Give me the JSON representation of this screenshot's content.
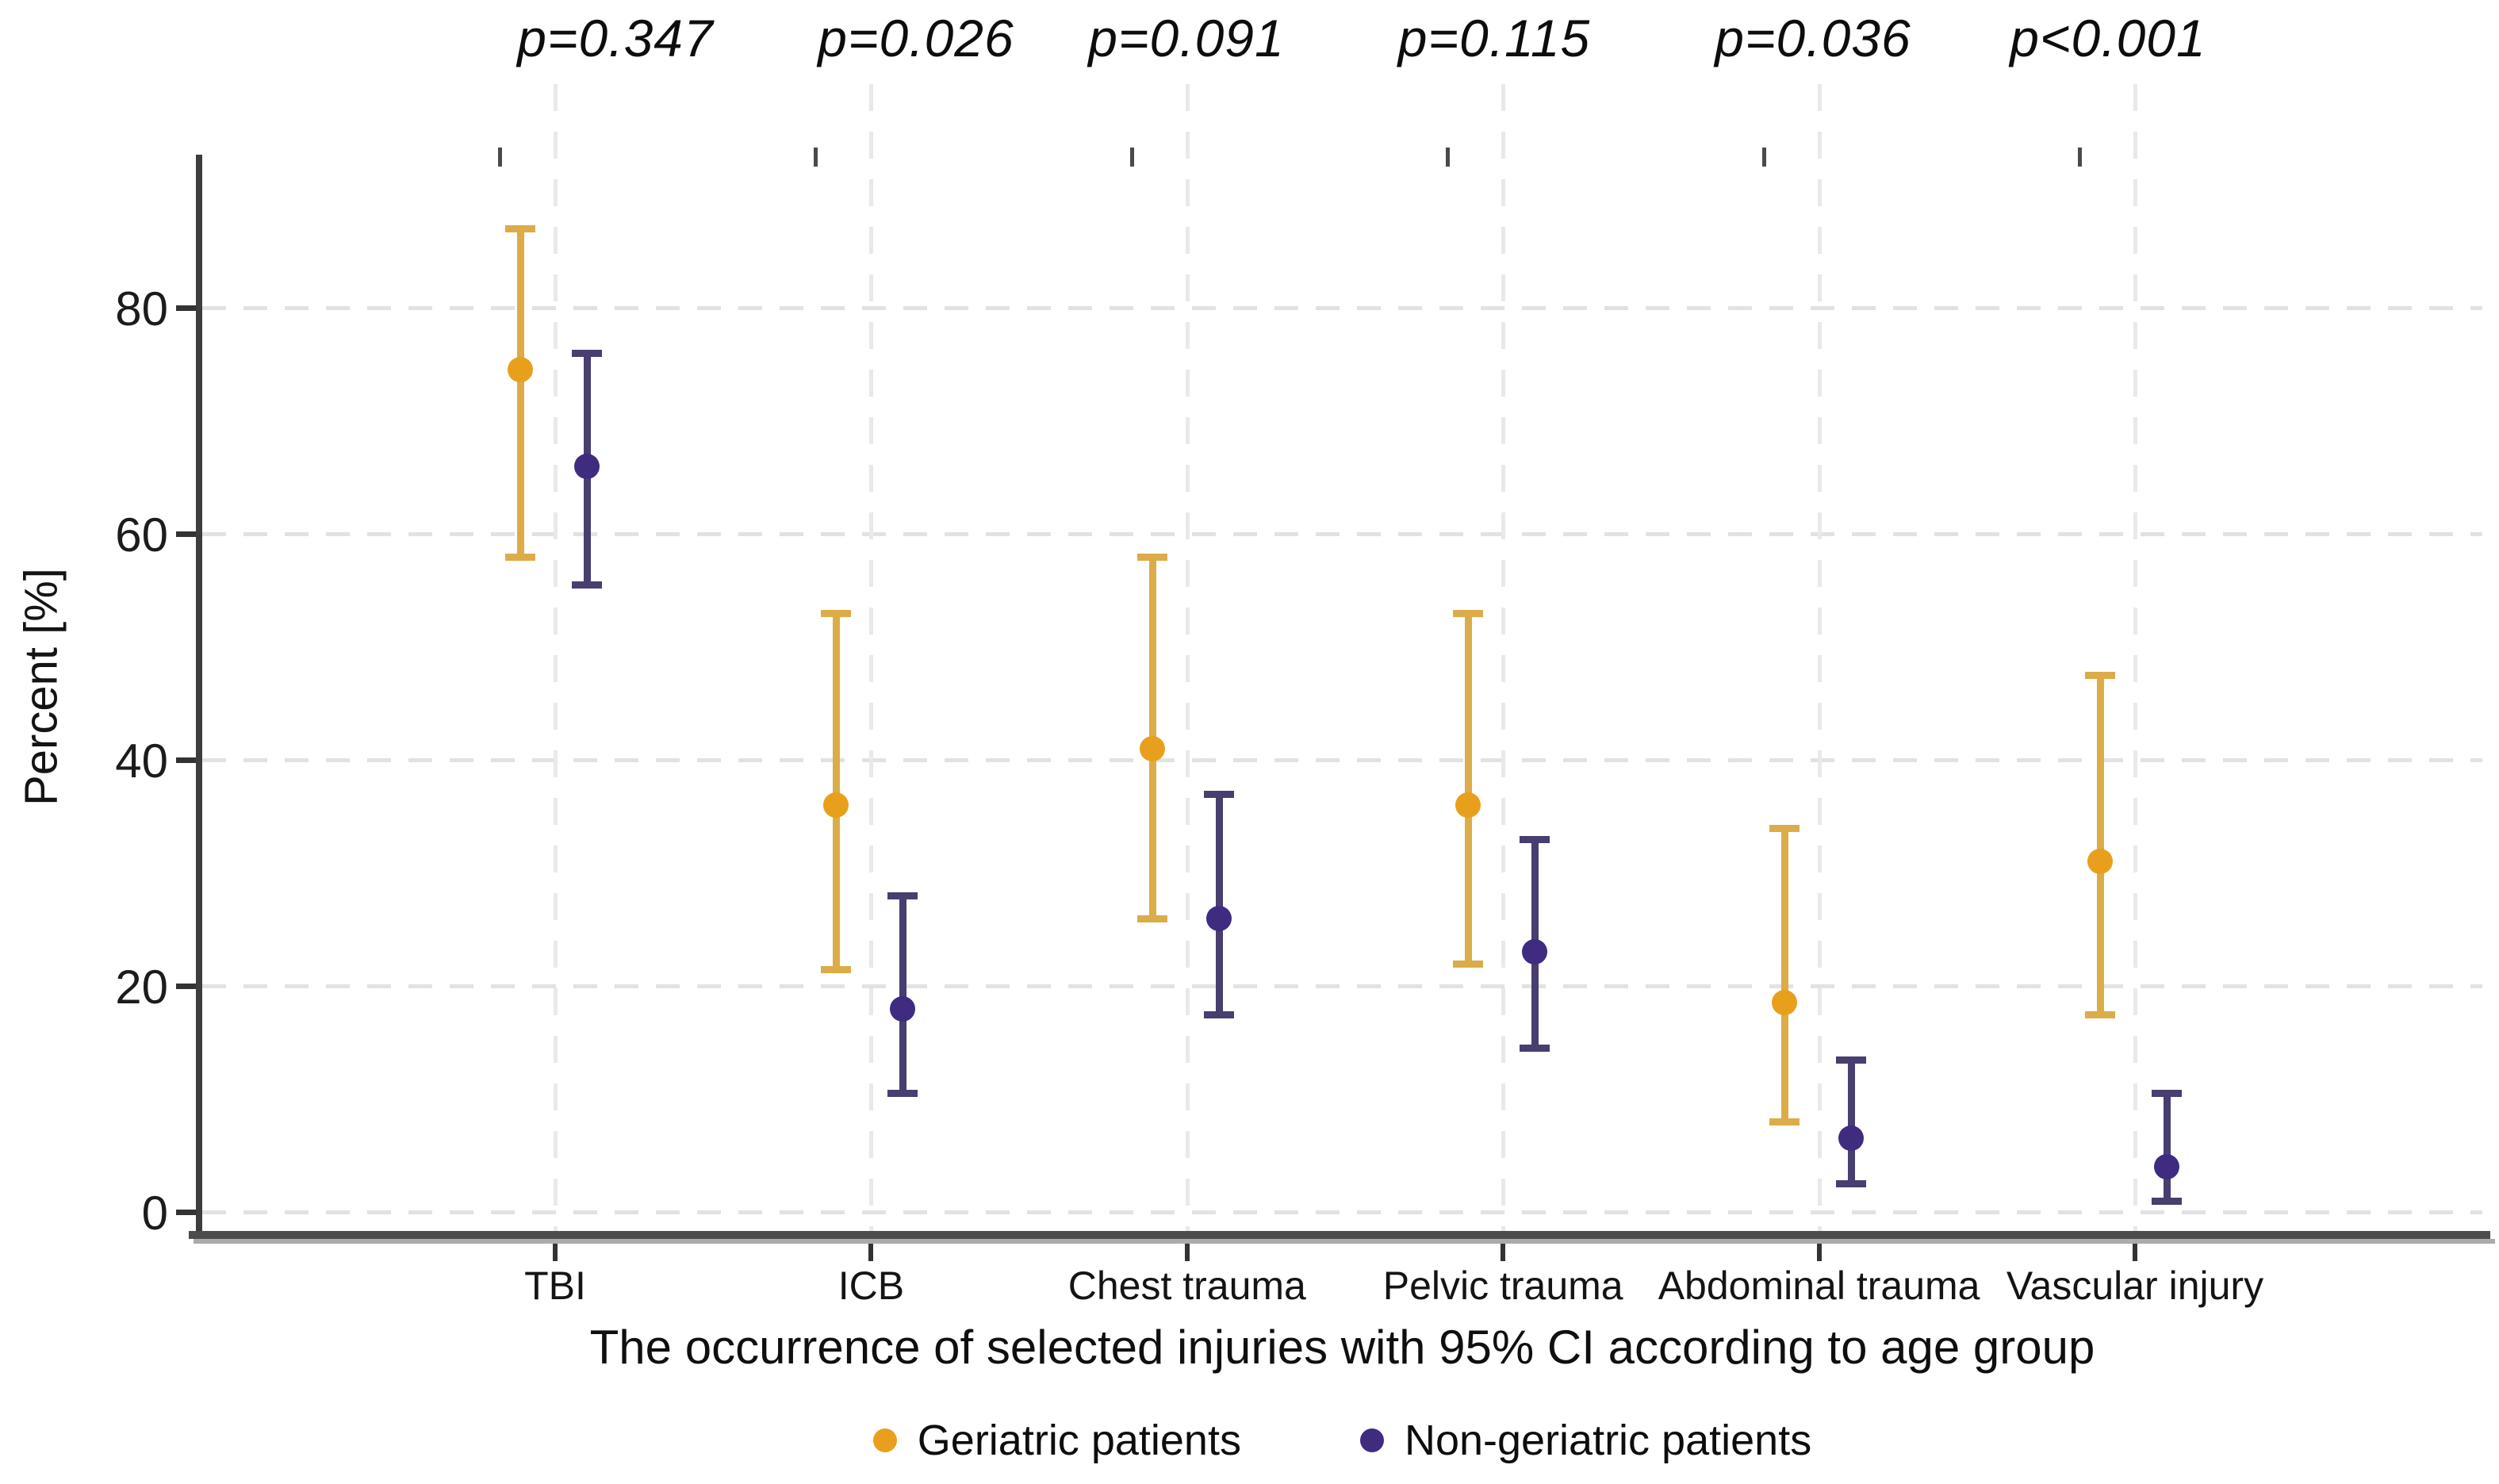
{
  "chart_data": {
    "type": "scatter",
    "subtype": "point-estimate-with-95ci-error-bars",
    "categories": [
      "TBI",
      "ICB",
      "Chest trauma",
      "Pelvic trauma",
      "Abdominal trauma",
      "Vascular injury"
    ],
    "p_values": [
      "p=0.347",
      "p=0.026",
      "p=0.091",
      "p=0.115",
      "p=0.036",
      "p<0.001"
    ],
    "series": [
      {
        "name": "Geriatric patients",
        "marker_color": "#E8A01C",
        "bar_color": "#DCAC48",
        "values": [
          74.5,
          36,
          41,
          36,
          18.5,
          31
        ],
        "ci_low": [
          58,
          21.5,
          26,
          22,
          8,
          17.5
        ],
        "ci_high": [
          87,
          53,
          58,
          53,
          34,
          47.5
        ]
      },
      {
        "name": "Non-geriatric patients",
        "marker_color": "#3F2B80",
        "bar_color": "#483E70",
        "values": [
          66,
          18,
          26,
          23,
          6.5,
          4
        ],
        "ci_low": [
          55.5,
          10.5,
          17.5,
          14.5,
          2.5,
          1
        ],
        "ci_high": [
          76,
          28,
          37,
          33,
          13.5,
          10.5
        ]
      }
    ],
    "ylabel": "Percent [%]",
    "xlabel": "The occurrence of selected injuries with 95% CI according to age group",
    "y_ticks": [
      0,
      20,
      40,
      60,
      80
    ],
    "ylim": [
      0,
      95
    ],
    "grid": "dashed horizontal and vertical at category centers",
    "legend_position": "bottom-center"
  }
}
